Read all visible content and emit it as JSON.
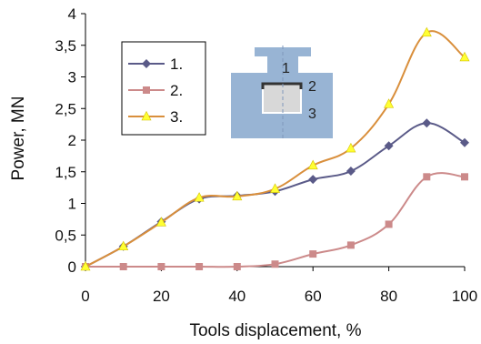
{
  "chart_data": {
    "type": "line",
    "title": "",
    "xlabel": "Tools displacement, %",
    "ylabel": "Power, MN",
    "xlim": [
      0,
      100
    ],
    "ylim": [
      0,
      4
    ],
    "x_ticks": [
      0,
      20,
      40,
      60,
      80,
      100
    ],
    "x_tick_labels": [
      "0",
      "20",
      "40",
      "60",
      "80",
      "100"
    ],
    "y_ticks": [
      0,
      0.5,
      1,
      1.5,
      2,
      2.5,
      3,
      3.5,
      4
    ],
    "y_tick_labels": [
      "0",
      "0,5",
      "1",
      "1,5",
      "2",
      "2,5",
      "3",
      "3,5",
      "4"
    ],
    "grid": false,
    "legend_position": "top-left",
    "series": [
      {
        "name": "1.",
        "color": "#5a5a88",
        "marker": "diamond",
        "x": [
          0,
          10,
          20,
          30,
          40,
          50,
          60,
          70,
          80,
          90,
          100
        ],
        "y": [
          0,
          0.32,
          0.71,
          1.07,
          1.12,
          1.19,
          1.38,
          1.51,
          1.91,
          2.27,
          1.96
        ]
      },
      {
        "name": "2.",
        "color": "#cc8a8a",
        "marker": "square",
        "x": [
          0,
          10,
          20,
          30,
          40,
          50,
          60,
          70,
          80,
          90,
          100
        ],
        "y": [
          0,
          0,
          0,
          0,
          0,
          0.04,
          0.2,
          0.34,
          0.67,
          1.42,
          1.42
        ]
      },
      {
        "name": "3.",
        "color": "#d98f3c",
        "marker": "triangle",
        "marker_color": "#ffff33",
        "x": [
          0,
          10,
          20,
          30,
          40,
          50,
          60,
          70,
          80,
          90,
          100
        ],
        "y": [
          0,
          0.32,
          0.7,
          1.09,
          1.11,
          1.23,
          1.6,
          1.87,
          2.57,
          3.7,
          3.31
        ]
      }
    ],
    "inset": {
      "labels": [
        "1",
        "2",
        "3"
      ]
    }
  }
}
